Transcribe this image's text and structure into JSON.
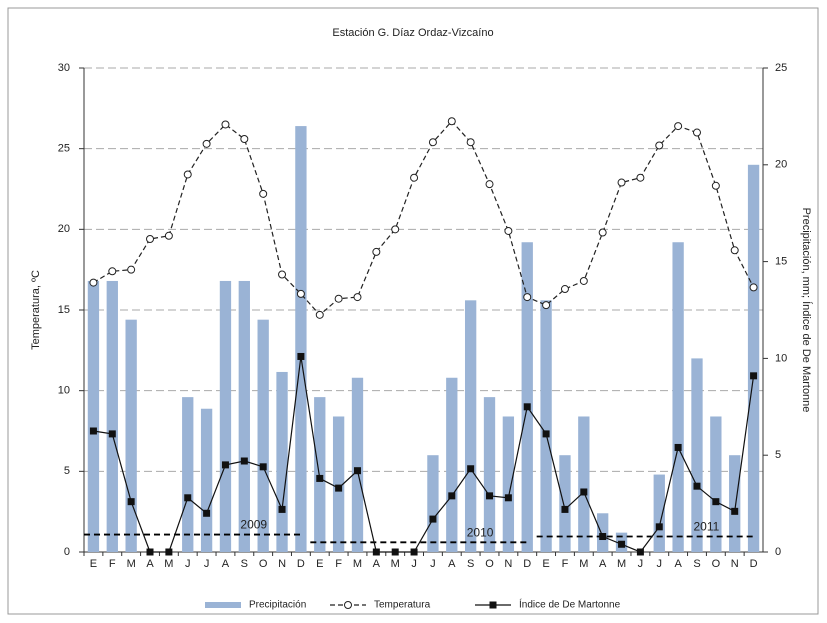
{
  "chart_data": {
    "type": "combo",
    "title": "Estación G. Díaz Ordaz-Vizcaíno",
    "y_label": "Temperatura, ºC",
    "y2_label": "Precipitación, mm; Índice de De Martonne",
    "categories": [
      "E",
      "F",
      "M",
      "A",
      "M",
      "J",
      "J",
      "A",
      "S",
      "O",
      "N",
      "D",
      "E",
      "F",
      "M",
      "A",
      "M",
      "J",
      "J",
      "A",
      "S",
      "O",
      "N",
      "D",
      "E",
      "F",
      "M",
      "A",
      "M",
      "J",
      "J",
      "A",
      "S",
      "O",
      "N",
      "D"
    ],
    "ylim": [
      0,
      30
    ],
    "yticks": [
      0,
      5,
      10,
      15,
      20,
      25,
      30
    ],
    "y2lim": [
      0,
      25
    ],
    "y2ticks": [
      0,
      5,
      10,
      15,
      20,
      25
    ],
    "grid": true,
    "series": [
      {
        "name": "Precipitación",
        "type": "bar",
        "axis": "y2",
        "color": "#9ab3d5",
        "values": [
          14,
          14,
          12,
          0,
          0,
          8,
          7.4,
          14,
          14,
          12,
          9.3,
          22,
          8,
          7,
          9,
          0,
          0,
          0,
          5,
          9,
          13,
          8,
          7,
          16,
          13,
          5,
          7,
          2,
          1,
          0,
          4,
          16,
          10,
          7,
          5,
          20
        ]
      },
      {
        "name": "Temperatura",
        "type": "line",
        "marker": "circle",
        "dashed": true,
        "color": "#222222",
        "values": [
          16.7,
          17.4,
          17.5,
          19.4,
          19.6,
          23.4,
          25.3,
          26.5,
          25.6,
          22.2,
          17.2,
          16.0,
          14.7,
          15.7,
          15.8,
          18.6,
          20.0,
          23.2,
          25.4,
          26.7,
          25.4,
          22.8,
          19.9,
          15.8,
          15.3,
          16.3,
          16.8,
          19.8,
          22.9,
          23.2,
          25.2,
          26.4,
          26.0,
          22.7,
          18.7,
          16.4
        ]
      },
      {
        "name": "Índice de De Martonne",
        "type": "line",
        "axis": "y2",
        "marker": "square",
        "dashed": false,
        "color": "#111111",
        "values": [
          6.25,
          6.1,
          2.6,
          0,
          0,
          2.8,
          2.0,
          4.5,
          4.7,
          4.4,
          2.2,
          10.1,
          3.8,
          3.3,
          4.2,
          0,
          0,
          0,
          1.7,
          2.9,
          4.3,
          2.9,
          2.8,
          7.5,
          6.1,
          2.2,
          3.1,
          0.8,
          0.4,
          0,
          1.3,
          5.4,
          3.4,
          2.6,
          2.1,
          9.1
        ]
      }
    ],
    "reference_lines": [
      {
        "label": "2009",
        "value": 0.9
      },
      {
        "label": "2010",
        "value": 0.5
      },
      {
        "label": "2011",
        "value": 0.8
      }
    ]
  }
}
